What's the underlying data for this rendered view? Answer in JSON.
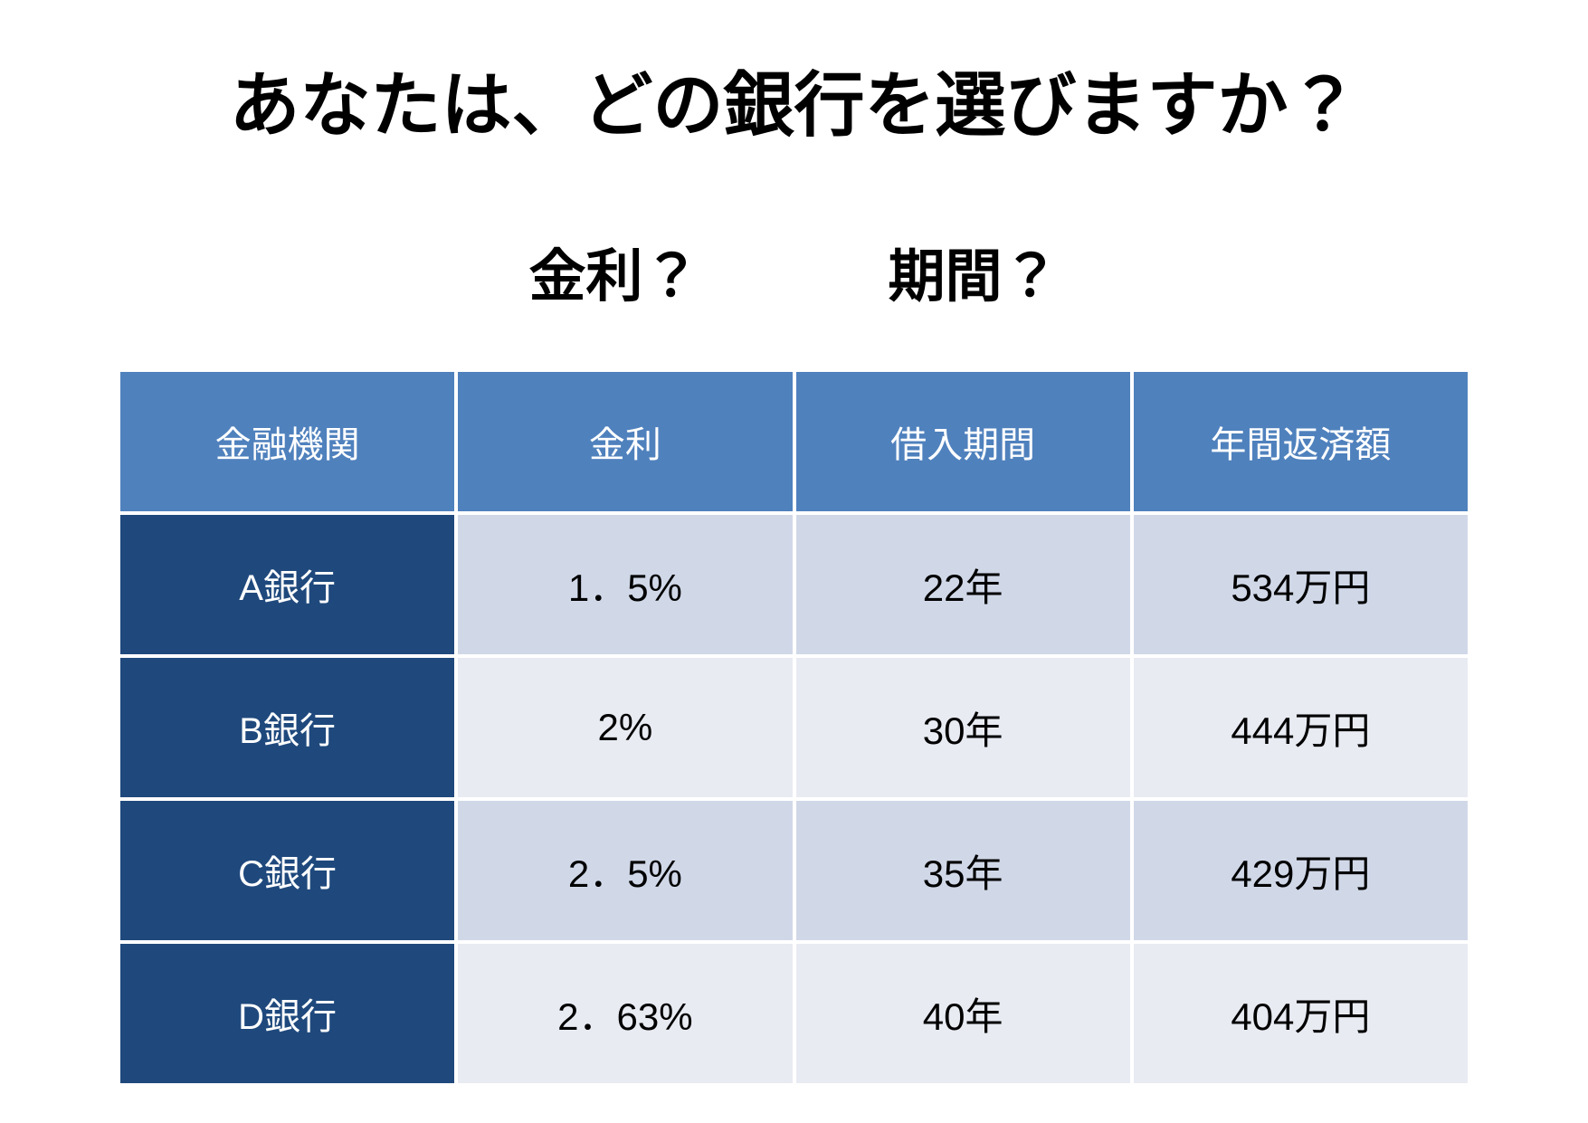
{
  "slide": {
    "title": "あなたは、どの銀行を選びますか？",
    "subtitles": [
      "金利？",
      "期間？"
    ]
  },
  "table": {
    "headers": [
      "金融機関",
      "金利",
      "借入期間",
      "年間返済額"
    ],
    "rows": [
      {
        "bank": "A銀行",
        "rate": "1．5%",
        "period": "22年",
        "repayment": "534万円"
      },
      {
        "bank": "B銀行",
        "rate": "2%",
        "period": "30年",
        "repayment": "444万円"
      },
      {
        "bank": "C銀行",
        "rate": "2．5%",
        "period": "35年",
        "repayment": "429万円"
      },
      {
        "bank": "D銀行",
        "rate": "2．63%",
        "period": "40年",
        "repayment": "404万円"
      }
    ]
  },
  "colors": {
    "header_bg": "#4F81BD",
    "bank_column_bg": "#1F497D",
    "row_band_dark": "#D0D8E8",
    "row_band_light": "#E9EBF3",
    "header_text": "#FFFFFF",
    "data_text": "#000000",
    "background": "#FFFFFF"
  },
  "chart_data": {
    "type": "table",
    "title": "あなたは、どの銀行を選びますか？",
    "annotations": [
      "金利？",
      "期間？"
    ],
    "columns": [
      "金融機関",
      "金利",
      "借入期間",
      "年間返済額"
    ],
    "rows": [
      [
        "A銀行",
        "1.5%",
        "22年",
        "534万円"
      ],
      [
        "B銀行",
        "2%",
        "30年",
        "444万円"
      ],
      [
        "C銀行",
        "2.5%",
        "35年",
        "429万円"
      ],
      [
        "D銀行",
        "2.63%",
        "40年",
        "404万円"
      ]
    ],
    "rates_percent": [
      1.5,
      2,
      2.5,
      2.63
    ],
    "loan_periods_years": [
      22,
      30,
      35,
      40
    ],
    "annual_repayment_man_yen": [
      534,
      444,
      429,
      404
    ]
  }
}
